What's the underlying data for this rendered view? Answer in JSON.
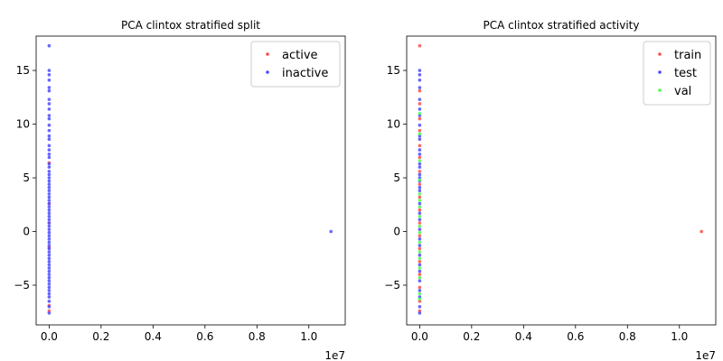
{
  "chart_data": [
    {
      "type": "scatter",
      "title": "PCA clintox stratified split",
      "xlabel": "",
      "ylabel": "",
      "x_offset_label": "1e7",
      "xlim": [
        -0.05,
        1.14
      ],
      "ylim": [
        -8.7,
        18.2
      ],
      "x_ticks": [
        0.0,
        0.2,
        0.4,
        0.6,
        0.8,
        1.0
      ],
      "x_tick_labels": [
        "0.0",
        "0.2",
        "0.4",
        "0.6",
        "0.8",
        "1.0"
      ],
      "y_ticks": [
        -5,
        0,
        5,
        10,
        15
      ],
      "y_tick_labels": [
        "−5",
        "0",
        "5",
        "10",
        "15"
      ],
      "legend_position": "top-right",
      "series": [
        {
          "name": "active",
          "color": "#ff4b4b",
          "points": [
            [
              0.0,
              -7.4
            ],
            [
              0.0,
              -6.9
            ],
            [
              0.0,
              -1.5
            ],
            [
              0.0,
              0.8
            ],
            [
              0.0,
              2.6
            ],
            [
              0.0,
              6.4
            ]
          ]
        },
        {
          "name": "inactive",
          "color": "#4b4bff",
          "points": [
            [
              0.0,
              17.3
            ],
            [
              0.0,
              15.0
            ],
            [
              0.0,
              14.6
            ],
            [
              0.0,
              14.1
            ],
            [
              0.0,
              13.4
            ],
            [
              0.0,
              13.1
            ],
            [
              0.0,
              12.3
            ],
            [
              0.0,
              11.9
            ],
            [
              0.0,
              11.4
            ],
            [
              0.0,
              10.8
            ],
            [
              0.0,
              10.5
            ],
            [
              0.0,
              9.9
            ],
            [
              0.0,
              9.4
            ],
            [
              0.0,
              8.9
            ],
            [
              0.0,
              8.6
            ],
            [
              0.0,
              8.0
            ],
            [
              0.0,
              7.6
            ],
            [
              0.0,
              7.2
            ],
            [
              0.0,
              6.9
            ],
            [
              0.0,
              6.3
            ],
            [
              0.0,
              6.0
            ],
            [
              0.0,
              5.6
            ],
            [
              0.0,
              5.3
            ],
            [
              0.0,
              5.0
            ],
            [
              0.0,
              4.7
            ],
            [
              0.0,
              4.4
            ],
            [
              0.0,
              4.1
            ],
            [
              0.0,
              3.8
            ],
            [
              0.0,
              3.5
            ],
            [
              0.0,
              3.2
            ],
            [
              0.0,
              2.9
            ],
            [
              0.0,
              2.6
            ],
            [
              0.0,
              2.3
            ],
            [
              0.0,
              2.0
            ],
            [
              0.0,
              1.7
            ],
            [
              0.0,
              1.4
            ],
            [
              0.0,
              1.1
            ],
            [
              0.0,
              0.8
            ],
            [
              0.0,
              0.5
            ],
            [
              0.0,
              0.2
            ],
            [
              0.0,
              -0.1
            ],
            [
              0.0,
              -0.4
            ],
            [
              0.0,
              -0.7
            ],
            [
              0.0,
              -1.0
            ],
            [
              0.0,
              -1.3
            ],
            [
              0.0,
              -1.6
            ],
            [
              0.0,
              -1.9
            ],
            [
              0.0,
              -2.2
            ],
            [
              0.0,
              -2.5
            ],
            [
              0.0,
              -2.8
            ],
            [
              0.0,
              -3.1
            ],
            [
              0.0,
              -3.4
            ],
            [
              0.0,
              -3.7
            ],
            [
              0.0,
              -4.0
            ],
            [
              0.0,
              -4.3
            ],
            [
              0.0,
              -4.6
            ],
            [
              0.0,
              -4.9
            ],
            [
              0.0,
              -5.2
            ],
            [
              0.0,
              -5.5
            ],
            [
              0.0,
              -5.8
            ],
            [
              0.0,
              -6.1
            ],
            [
              0.0,
              -6.5
            ],
            [
              0.0,
              -7.0
            ],
            [
              0.0,
              -7.6
            ],
            [
              1.085,
              0.0
            ]
          ]
        }
      ]
    },
    {
      "type": "scatter",
      "title": "PCA clintox stratified activity",
      "xlabel": "",
      "ylabel": "",
      "x_offset_label": "1e7",
      "xlim": [
        -0.05,
        1.14
      ],
      "ylim": [
        -8.7,
        18.2
      ],
      "x_ticks": [
        0.0,
        0.2,
        0.4,
        0.6,
        0.8,
        1.0
      ],
      "x_tick_labels": [
        "0.0",
        "0.2",
        "0.4",
        "0.6",
        "0.8",
        "1.0"
      ],
      "y_ticks": [
        -5,
        0,
        5,
        10,
        15
      ],
      "y_tick_labels": [
        "−5",
        "0",
        "5",
        "10",
        "15"
      ],
      "legend_position": "top-right",
      "series": [
        {
          "name": "train",
          "color": "#ff4b4b",
          "points": [
            [
              0.0,
              17.3
            ],
            [
              0.0,
              13.1
            ],
            [
              0.0,
              11.9
            ],
            [
              0.0,
              10.5
            ],
            [
              0.0,
              9.4
            ],
            [
              0.0,
              8.0
            ],
            [
              0.0,
              6.9
            ],
            [
              0.0,
              5.6
            ],
            [
              0.0,
              4.4
            ],
            [
              0.0,
              3.2
            ],
            [
              0.0,
              2.0
            ],
            [
              0.0,
              0.8
            ],
            [
              0.0,
              -0.4
            ],
            [
              0.0,
              -1.6
            ],
            [
              0.0,
              -2.8
            ],
            [
              0.0,
              -4.0
            ],
            [
              0.0,
              -5.2
            ],
            [
              0.0,
              -6.5
            ],
            [
              0.0,
              -7.4
            ],
            [
              1.085,
              0.0
            ]
          ]
        },
        {
          "name": "test",
          "color": "#4b4bff",
          "points": [
            [
              0.0,
              15.0
            ],
            [
              0.0,
              14.6
            ],
            [
              0.0,
              14.1
            ],
            [
              0.0,
              13.4
            ],
            [
              0.0,
              12.3
            ],
            [
              0.0,
              11.4
            ],
            [
              0.0,
              10.8
            ],
            [
              0.0,
              9.9
            ],
            [
              0.0,
              8.9
            ],
            [
              0.0,
              8.6
            ],
            [
              0.0,
              7.6
            ],
            [
              0.0,
              7.2
            ],
            [
              0.0,
              6.3
            ],
            [
              0.0,
              6.0
            ],
            [
              0.0,
              5.3
            ],
            [
              0.0,
              5.0
            ],
            [
              0.0,
              4.7
            ],
            [
              0.0,
              4.1
            ],
            [
              0.0,
              3.8
            ],
            [
              0.0,
              2.6
            ],
            [
              0.0,
              1.7
            ],
            [
              0.0,
              1.1
            ],
            [
              0.0,
              0.2
            ],
            [
              0.0,
              -0.7
            ],
            [
              0.0,
              -1.3
            ],
            [
              0.0,
              -2.2
            ],
            [
              0.0,
              -3.1
            ],
            [
              0.0,
              -3.7
            ],
            [
              0.0,
              -4.6
            ],
            [
              0.0,
              -5.5
            ],
            [
              0.0,
              -6.1
            ],
            [
              0.0,
              -7.0
            ],
            [
              0.0,
              -7.6
            ]
          ]
        },
        {
          "name": "val",
          "color": "#4bff4b",
          "points": [
            [
              0.0,
              11.0
            ],
            [
              0.0,
              9.1
            ],
            [
              0.0,
              6.6
            ],
            [
              0.0,
              4.8
            ],
            [
              0.0,
              3.5
            ],
            [
              0.0,
              2.9
            ],
            [
              0.0,
              2.3
            ],
            [
              0.0,
              1.4
            ],
            [
              0.0,
              0.5
            ],
            [
              0.0,
              -0.1
            ],
            [
              0.0,
              -1.0
            ],
            [
              0.0,
              -1.9
            ],
            [
              0.0,
              -2.5
            ],
            [
              0.0,
              -3.4
            ],
            [
              0.0,
              -4.3
            ],
            [
              0.0,
              -5.8
            ],
            [
              0.0,
              -6.3
            ]
          ]
        }
      ]
    }
  ]
}
